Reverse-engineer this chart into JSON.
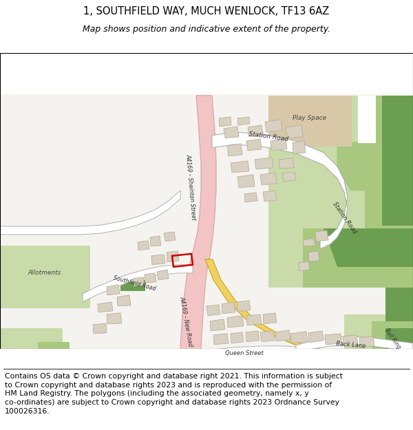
{
  "title_line1": "1, SOUTHFIELD WAY, MUCH WENLOCK, TF13 6AZ",
  "title_line2": "Map shows position and indicative extent of the property.",
  "footer_text": "Contains OS data © Crown copyright and database right 2021. This information is subject\nto Crown copyright and database rights 2023 and is reproduced with the permission of\nHM Land Registry. The polygons (including the associated geometry, namely x, y\nco-ordinates) are subject to Crown copyright and database rights 2023 Ordnance Survey\n100026316.",
  "title_fontsize": 10.5,
  "subtitle_fontsize": 9.0,
  "footer_fontsize": 7.8,
  "map_bg": "#f5f3ef",
  "road_main_color": "#f2c4c4",
  "road_main_border": "#d8a0a0",
  "road_yellow_color": "#f0d060",
  "road_yellow_border": "#c8a820",
  "road_minor_color": "#ffffff",
  "road_minor_border": "#b0b0b0",
  "green_light": "#c8dba8",
  "green_mid": "#a8c880",
  "green_dark": "#6b9e50",
  "green_path": "#5a8a40",
  "building_color": "#d8d0c0",
  "building_outline": "#b0a898",
  "highlight_color": "#cc0000",
  "text_dark": "#222222",
  "beige_area": "#d8c8a8"
}
